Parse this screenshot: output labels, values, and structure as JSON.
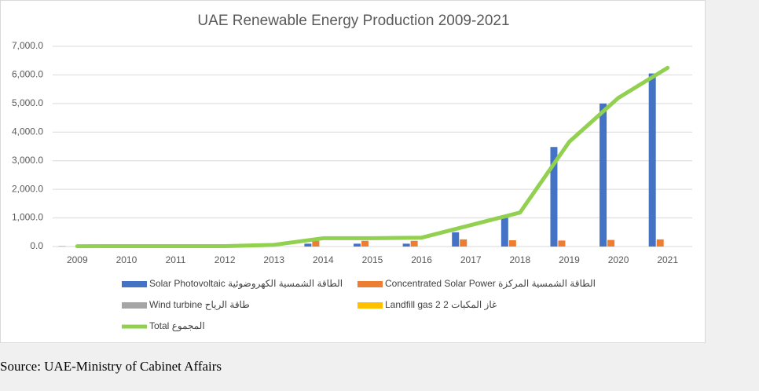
{
  "chart_data": {
    "type": "bar_line",
    "title": "UAE Renewable Energy Production 2009-2021",
    "categories": [
      "2009",
      "2010",
      "2011",
      "2012",
      "2013",
      "2014",
      "2015",
      "2016",
      "2017",
      "2018",
      "2019",
      "2020",
      "2021"
    ],
    "series": [
      {
        "name": "Solar Photovoltaic الطاقة الشمسية الكهروضوئية",
        "color": "#4472c4",
        "kind": "bar",
        "values": [
          10,
          10,
          0,
          0,
          0,
          100,
          100,
          100,
          500,
          1000,
          3480,
          5000,
          6050
        ]
      },
      {
        "name": "Concentrated Solar Power الطاقة الشمسية المركزة",
        "color": "#ed7d31",
        "kind": "bar",
        "values": [
          0,
          0,
          0,
          0,
          0,
          200,
          200,
          200,
          250,
          220,
          210,
          230,
          250
        ]
      },
      {
        "name": "Wind turbine طاقة الرياح",
        "color": "#a5a5a5",
        "kind": "bar",
        "values": [
          0,
          0,
          0,
          0,
          0,
          0,
          0,
          0,
          0,
          0,
          0,
          0,
          0
        ]
      },
      {
        "name": "Landfill gas 2 غاز المكبات 2",
        "color": "#ffc000",
        "kind": "bar",
        "values": [
          0,
          0,
          0,
          0,
          0,
          0,
          0,
          0,
          0,
          0,
          0,
          0,
          0
        ]
      },
      {
        "name": "Total المجموع",
        "color": "#92d050",
        "kind": "line",
        "values": [
          10,
          15,
          15,
          15,
          60,
          290,
          290,
          310,
          750,
          1190,
          3660,
          5200,
          6250
        ]
      }
    ],
    "ylim": [
      0,
      7000
    ],
    "yticks": [
      {
        "value": 0,
        "label": "0.0"
      },
      {
        "value": 1000,
        "label": "1,000.0"
      },
      {
        "value": 2000,
        "label": "2,000.0"
      },
      {
        "value": 3000,
        "label": "3,000.0"
      },
      {
        "value": 4000,
        "label": "4,000.0"
      },
      {
        "value": 5000,
        "label": "5,000.0"
      },
      {
        "value": 6000,
        "label": "6,000.0"
      },
      {
        "value": 7000,
        "label": "7,000.0"
      }
    ],
    "grid": true
  },
  "source": "Source: UAE-Ministry of Cabinet Affairs"
}
